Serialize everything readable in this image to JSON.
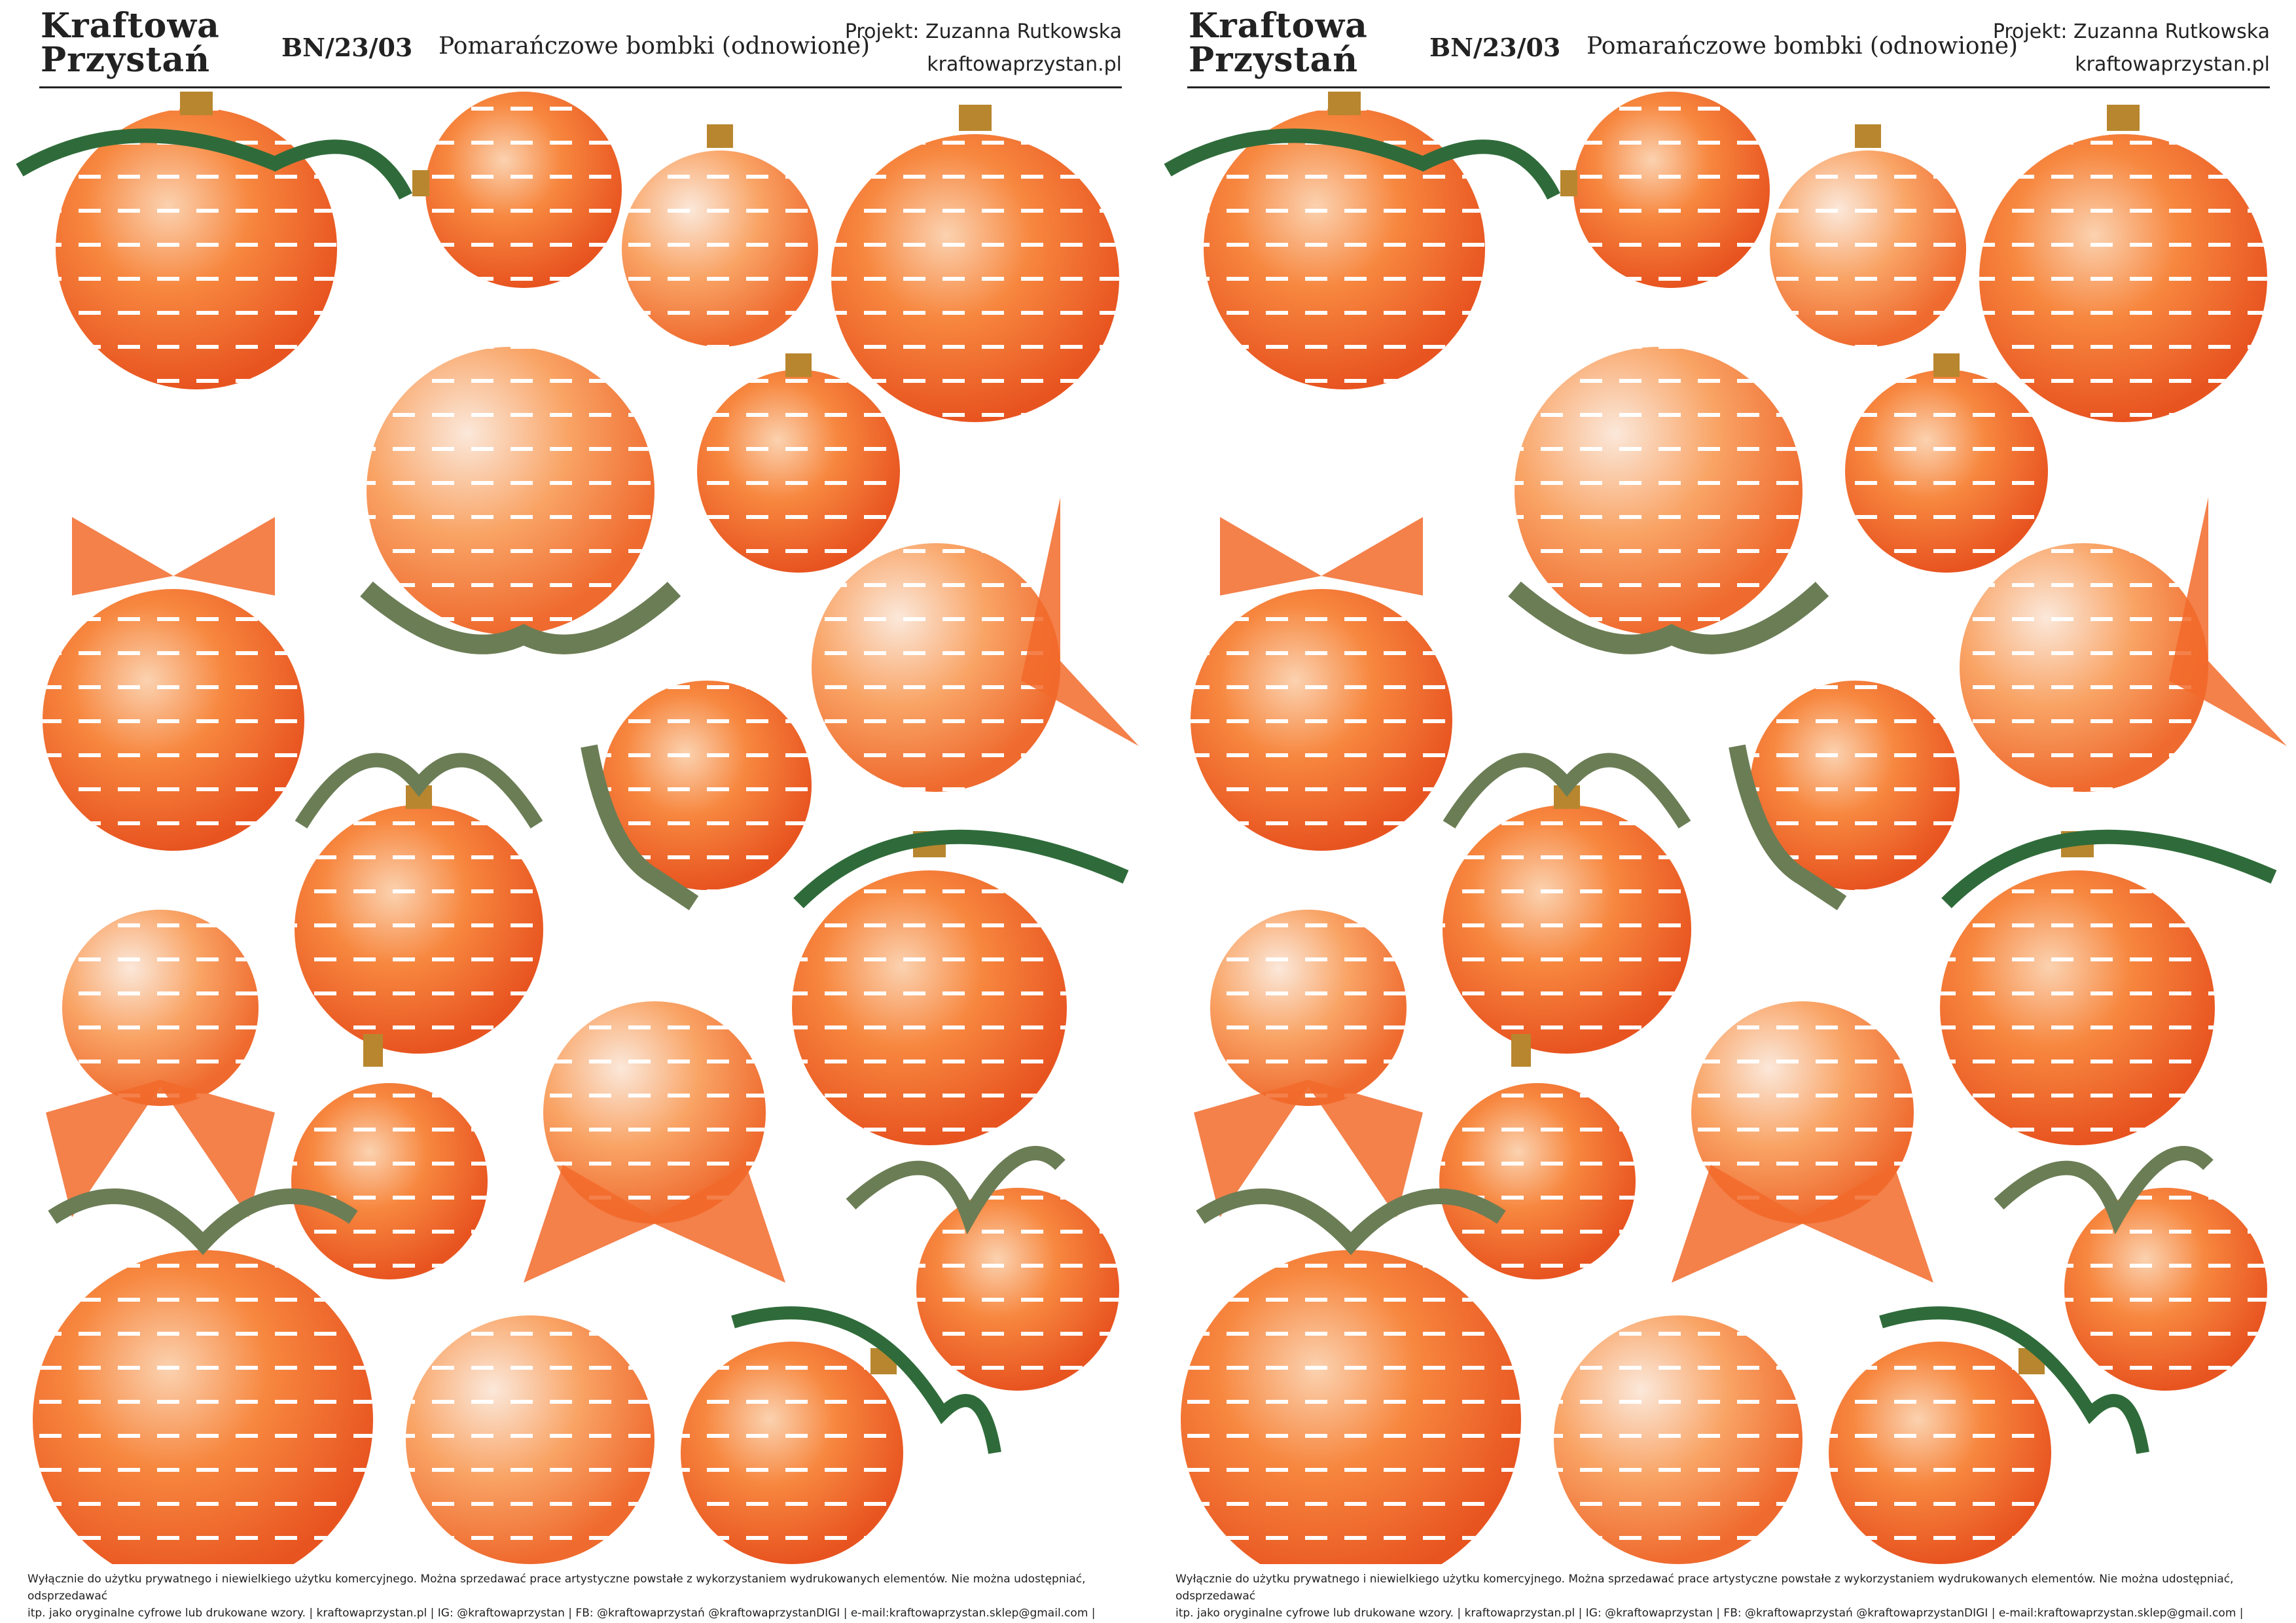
{
  "header": {
    "logo_line1": "Kraftowa",
    "logo_line2": "Przystań",
    "code": "BN/23/03",
    "title": "Pomarańczowe bombki (odnowione)",
    "project": "Projekt: Zuzanna Rutkowska",
    "website": "kraftowaprzystan.pl"
  },
  "footer": {
    "line1": "Wyłącznie do użytku prywatnego i niewielkiego użytku komercyjnego. Można sprzedawać prace artystyczne powstałe z wykorzystaniem wydrukowanych elementów. Nie można udostępniać, odsprzedawać",
    "line2": "itp. jako oryginalne cyfrowe lub drukowane wzory.  | kraftowaprzystan.pl  | IG: @kraftowaprzystan | FB: @kraftowaprzystań @kraftowaprzystanDIGI | e-mail:kraftowaprzystan.sklep@gmail.com |"
  },
  "colors": {
    "orange": "#f26a2a",
    "light_orange": "#f9a15c",
    "cream": "#f7e6d8",
    "gold": "#b8862e",
    "pine": "#2f6b3a",
    "holly": "#6b7d55"
  }
}
